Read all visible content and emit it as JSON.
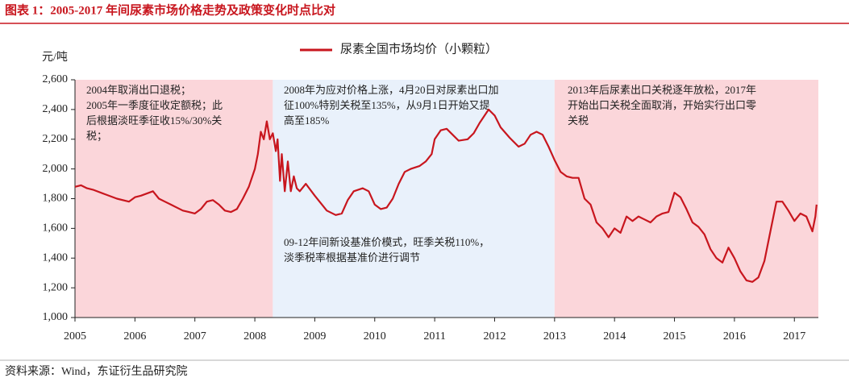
{
  "chart_data": {
    "type": "line",
    "title": "图表 1：2005-2017 年间尿素市场价格走势及政策变化时点比对",
    "source": "资料来源：Wind，东证衍生品研究院",
    "y_unit": "元/吨",
    "legend": "top",
    "xlim": [
      2005,
      2017.4
    ],
    "xticks": [
      2005,
      2006,
      2007,
      2008,
      2009,
      2010,
      2011,
      2012,
      2013,
      2014,
      2015,
      2016,
      2017
    ],
    "ylim": [
      1000,
      2600
    ],
    "yticks": [
      {
        "value": 1000,
        "label": "1,000"
      },
      {
        "value": 1200,
        "label": "1,200"
      },
      {
        "value": 1400,
        "label": "1,400"
      },
      {
        "value": 1600,
        "label": "1,600"
      },
      {
        "value": 1800,
        "label": "1,800"
      },
      {
        "value": 2000,
        "label": "2,000"
      },
      {
        "value": 2200,
        "label": "2,200"
      },
      {
        "value": 2400,
        "label": "2,400"
      },
      {
        "value": 2600,
        "label": "2,600"
      }
    ],
    "regions": [
      {
        "start": 2005,
        "end": 2008.3,
        "color": "#fbd6da",
        "notes": [
          [
            "2004年取消出口退税；",
            "2005年一季度征收定额税；此",
            "后根据淡旺季征收15%/30%关",
            "税；"
          ]
        ]
      },
      {
        "start": 2008.3,
        "end": 2013.0,
        "color": "#e9f1fb",
        "notes": [
          [
            "2008年为应对价格上涨，4月20日对尿素出口加",
            "征100%特别关税至135%，从9月1日开始又提",
            "高至185%"
          ],
          [
            "09-12年间新设基准价模式，旺季关税110%，",
            "淡季税率根据基准价进行调节"
          ]
        ]
      },
      {
        "start": 2013.0,
        "end": 2017.4,
        "color": "#fbd6da",
        "notes": [
          [
            "2013年后尿素出口关税逐年放松，2017年",
            "开始出口关税全面取消，开始实行出口零",
            "关税"
          ]
        ]
      }
    ],
    "x": [
      2005.0,
      2005.1,
      2005.2,
      2005.3,
      2005.5,
      2005.7,
      2005.9,
      2006.0,
      2006.1,
      2006.3,
      2006.4,
      2006.5,
      2006.6,
      2006.8,
      2006.9,
      2007.0,
      2007.1,
      2007.2,
      2007.3,
      2007.4,
      2007.5,
      2007.6,
      2007.7,
      2007.8,
      2007.9,
      2008.0,
      2008.05,
      2008.1,
      2008.15,
      2008.2,
      2008.25,
      2008.3,
      2008.35,
      2008.38,
      2008.42,
      2008.45,
      2008.5,
      2008.55,
      2008.6,
      2008.65,
      2008.7,
      2008.75,
      2008.85,
      2009.0,
      2009.2,
      2009.35,
      2009.45,
      2009.55,
      2009.65,
      2009.8,
      2009.9,
      2010.0,
      2010.1,
      2010.2,
      2010.3,
      2010.4,
      2010.5,
      2010.6,
      2010.75,
      2010.85,
      2010.95,
      2011.0,
      2011.1,
      2011.2,
      2011.3,
      2011.4,
      2011.55,
      2011.65,
      2011.75,
      2011.9,
      2012.0,
      2012.1,
      2012.25,
      2012.4,
      2012.5,
      2012.6,
      2012.7,
      2012.8,
      2012.9,
      2013.0,
      2013.1,
      2013.2,
      2013.3,
      2013.4,
      2013.5,
      2013.6,
      2013.7,
      2013.8,
      2013.9,
      2014.0,
      2014.1,
      2014.2,
      2014.3,
      2014.4,
      2014.5,
      2014.6,
      2014.7,
      2014.8,
      2014.9,
      2015.0,
      2015.1,
      2015.2,
      2015.3,
      2015.4,
      2015.5,
      2015.6,
      2015.7,
      2015.8,
      2015.9,
      2016.0,
      2016.1,
      2016.2,
      2016.3,
      2016.4,
      2016.5,
      2016.6,
      2016.7,
      2016.8,
      2016.9,
      2017.0,
      2017.1,
      2017.2,
      2017.3,
      2017.35,
      2017.37
    ],
    "series": [
      {
        "name": "尿素全国市场均价（小颗粒）",
        "color": "#c8161e",
        "values": [
          1880,
          1890,
          1870,
          1860,
          1830,
          1800,
          1780,
          1810,
          1820,
          1850,
          1800,
          1780,
          1760,
          1720,
          1710,
          1700,
          1730,
          1780,
          1790,
          1760,
          1720,
          1710,
          1730,
          1800,
          1880,
          2000,
          2100,
          2250,
          2200,
          2320,
          2200,
          2240,
          2120,
          2200,
          1920,
          2100,
          1850,
          2050,
          1850,
          1950,
          1870,
          1850,
          1900,
          1820,
          1720,
          1690,
          1700,
          1790,
          1850,
          1870,
          1850,
          1760,
          1730,
          1740,
          1800,
          1900,
          1980,
          2000,
          2020,
          2050,
          2100,
          2200,
          2260,
          2270,
          2230,
          2190,
          2200,
          2240,
          2310,
          2400,
          2360,
          2280,
          2210,
          2150,
          2170,
          2230,
          2250,
          2230,
          2150,
          2060,
          1980,
          1950,
          1940,
          1940,
          1800,
          1760,
          1640,
          1600,
          1540,
          1600,
          1570,
          1680,
          1650,
          1680,
          1660,
          1640,
          1680,
          1700,
          1710,
          1840,
          1810,
          1730,
          1640,
          1610,
          1560,
          1460,
          1400,
          1370,
          1470,
          1400,
          1310,
          1250,
          1240,
          1270,
          1380,
          1580,
          1780,
          1780,
          1720,
          1650,
          1700,
          1680,
          1580,
          1680,
          1760
        ]
      }
    ]
  }
}
